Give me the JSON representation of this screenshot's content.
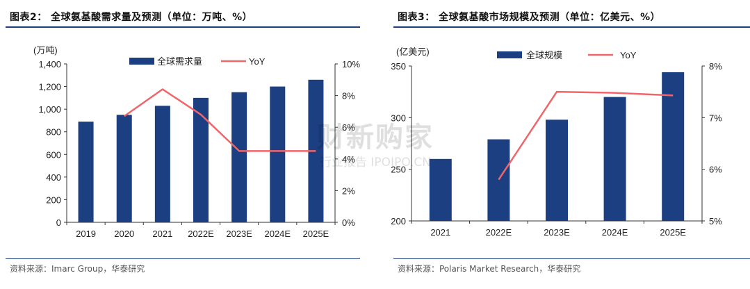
{
  "left": {
    "title": "图表2：  全球氨基酸需求量及预测（单位：万吨、%）",
    "source": "资料来源：Imarc Group，华泰研究",
    "unit_label": "(万吨)"
  },
  "right": {
    "title": "图表3：  全球氨基酸市场规模及预测（单位：亿美元、%）",
    "source": "资料来源：Polaris Market Research，华泰研究",
    "unit_label": "(亿美元)"
  },
  "watermark": {
    "main": "财新购家",
    "sub": "行业报告 IPOIPO.CN"
  },
  "colors": {
    "bar": "#1b3f80",
    "line": "#f0656a",
    "rule": "#1f3f7a"
  },
  "chart_data": [
    {
      "type": "bar",
      "title": "全球氨基酸需求量及预测（单位：万吨、%）",
      "categories": [
        "2019",
        "2020",
        "2021",
        "2022E",
        "2023E",
        "2024E",
        "2025E"
      ],
      "series": [
        {
          "name": "全球需求量",
          "type": "bar",
          "axis": "left",
          "values": [
            890,
            950,
            1030,
            1100,
            1150,
            1200,
            1260
          ]
        },
        {
          "name": "YoY",
          "type": "line",
          "axis": "right",
          "values": [
            null,
            6.7,
            8.4,
            6.8,
            4.5,
            4.5,
            4.5
          ]
        }
      ],
      "ylim": [
        0,
        1400
      ],
      "yticks": [
        0,
        200,
        400,
        600,
        800,
        1000,
        1200,
        1400
      ],
      "ytick_labels": [
        "0",
        "200",
        "400",
        "600",
        "800",
        "1,000",
        "1,200",
        "1,400"
      ],
      "y2lim": [
        0,
        10
      ],
      "y2ticks": [
        0,
        2,
        4,
        6,
        8,
        10
      ],
      "y2tick_labels": [
        "0%",
        "2%",
        "4%",
        "6%",
        "8%",
        "10%"
      ],
      "ylabel": "(万吨)",
      "legend": "top",
      "grid": false
    },
    {
      "type": "bar",
      "title": "全球氨基酸市场规模及预测（单位：亿美元、%）",
      "categories": [
        "2021",
        "2022E",
        "2023E",
        "2024E",
        "2025E"
      ],
      "series": [
        {
          "name": "全球规模",
          "type": "bar",
          "axis": "left",
          "values": [
            260,
            279,
            298,
            320,
            344
          ]
        },
        {
          "name": "YoY",
          "type": "line",
          "axis": "right",
          "values": [
            null,
            5.8,
            7.5,
            7.48,
            7.43
          ]
        }
      ],
      "ylim": [
        200,
        350
      ],
      "yticks": [
        200,
        250,
        300,
        350
      ],
      "ytick_labels": [
        "200",
        "250",
        "300",
        "350"
      ],
      "y2lim": [
        5,
        8
      ],
      "y2ticks": [
        5,
        6,
        7,
        8
      ],
      "y2tick_labels": [
        "5%",
        "6%",
        "7%",
        "8%"
      ],
      "ylabel": "(亿美元)",
      "legend": "top",
      "grid": false
    }
  ]
}
